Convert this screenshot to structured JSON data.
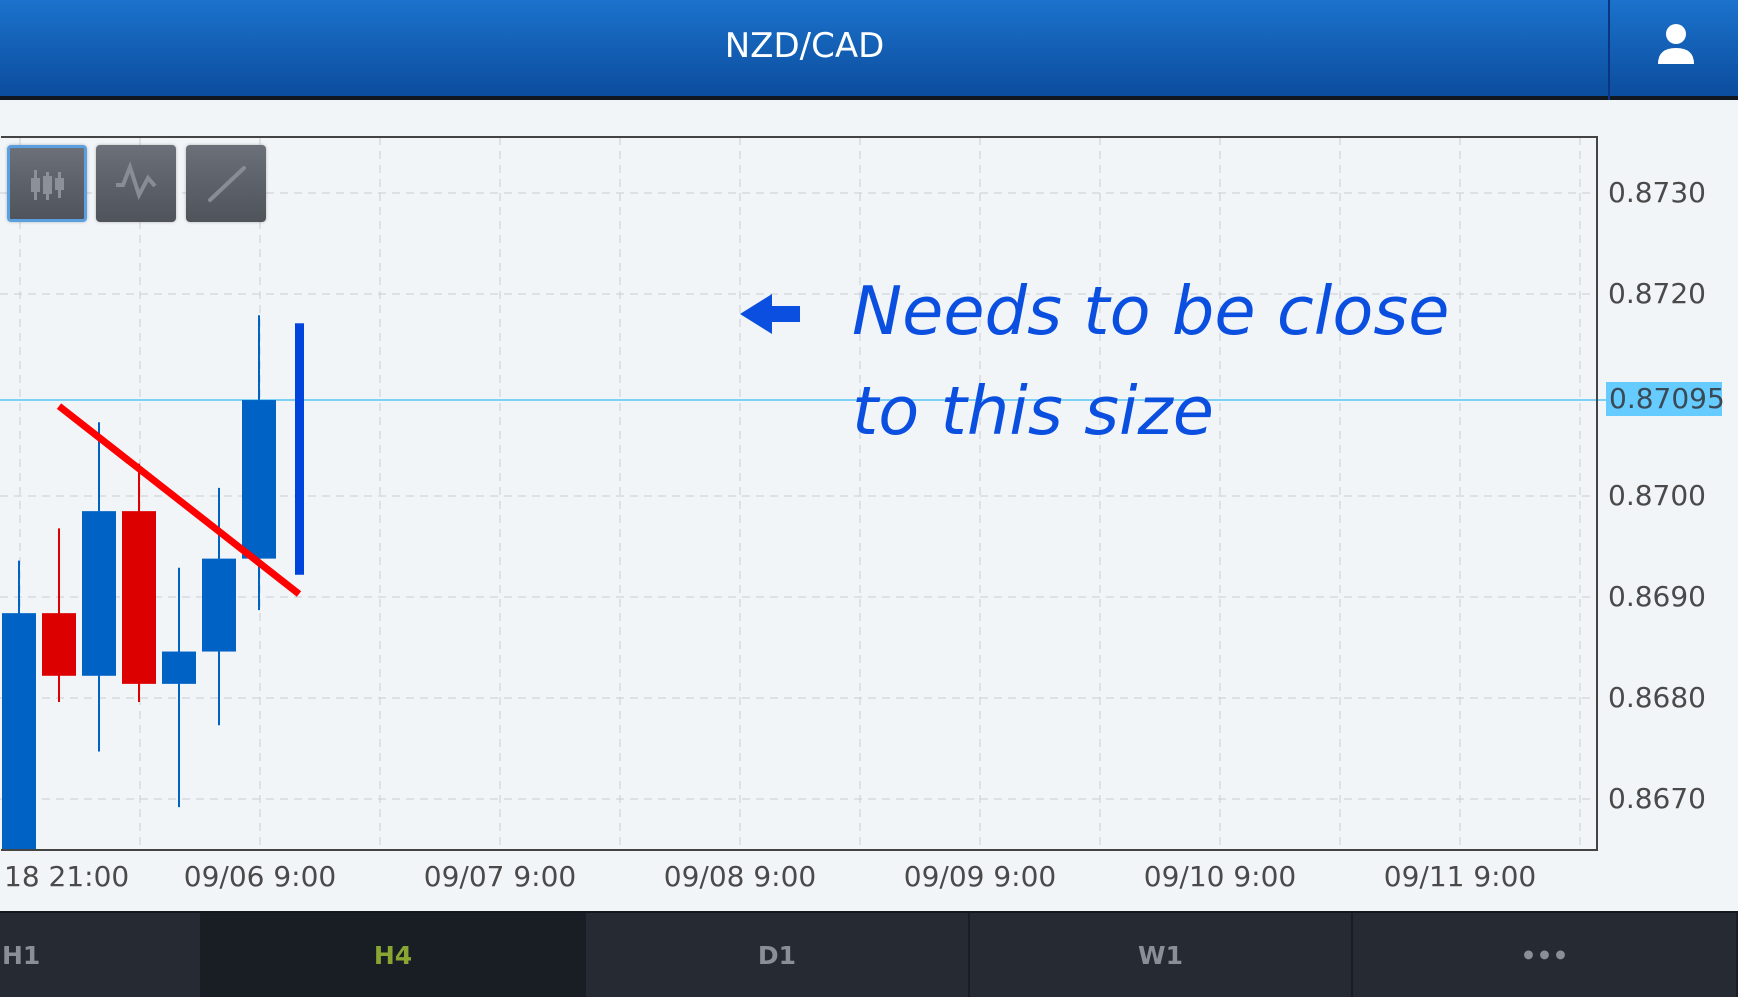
{
  "header": {
    "title": "NZD/CAD",
    "user_icon": "user-icon"
  },
  "toolbar": {
    "buttons": [
      {
        "icon": "candlestick-icon",
        "selected": true
      },
      {
        "icon": "line-chart-icon",
        "selected": false
      },
      {
        "icon": "draw-line-icon",
        "selected": false
      }
    ]
  },
  "chart_data": {
    "type": "candlestick",
    "y_ticks": [
      "0.8730",
      "0.8720",
      "0.8700",
      "0.8690",
      "0.8680",
      "0.8670"
    ],
    "x_ticks": [
      "18 21:00",
      "09/06 9:00",
      "09/07 9:00",
      "09/08 9:00",
      "09/09 9:00",
      "09/10 9:00",
      "09/11 9:00"
    ],
    "ylim": [
      0.8662,
      0.8735
    ],
    "grid": true,
    "last_price": "0.87095",
    "colors": {
      "up": "#0062c4",
      "down": "#dd0000",
      "current": "#0044dd",
      "trendline": "#ff0000",
      "last_price_line": "#66ccff",
      "annotation": "#0a4fe0"
    },
    "candles": [
      {
        "o": 0.866,
        "h": 0.86936,
        "l": 0.8655,
        "c": 0.86884
      },
      {
        "o": 0.86884,
        "h": 0.86968,
        "l": 0.86796,
        "c": 0.86822
      },
      {
        "o": 0.86822,
        "h": 0.87073,
        "l": 0.86747,
        "c": 0.86985
      },
      {
        "o": 0.86985,
        "h": 0.87032,
        "l": 0.86796,
        "c": 0.86814
      },
      {
        "o": 0.86814,
        "h": 0.86929,
        "l": 0.86692,
        "c": 0.86846
      },
      {
        "o": 0.86846,
        "h": 0.87008,
        "l": 0.86773,
        "c": 0.86938
      },
      {
        "o": 0.86938,
        "h": 0.87179,
        "l": 0.86887,
        "c": 0.87095
      },
      {
        "o": 0.86922,
        "h": 0.87171,
        "l": 0.86922,
        "c": 0.87171,
        "current": true
      }
    ],
    "trendline": [
      {
        "candle": 1,
        "price": 0.87089
      },
      {
        "candle": 8,
        "price": 0.86903
      }
    ]
  },
  "annotation": {
    "line1": "Needs to be close",
    "line2": "to this size",
    "arrow": "arrow-left-icon"
  },
  "timeframes": [
    {
      "label": "H1",
      "selected": false
    },
    {
      "label": "H4",
      "selected": true
    },
    {
      "label": "D1",
      "selected": false
    },
    {
      "label": "W1",
      "selected": false
    },
    {
      "label": "•••",
      "selected": false
    }
  ]
}
